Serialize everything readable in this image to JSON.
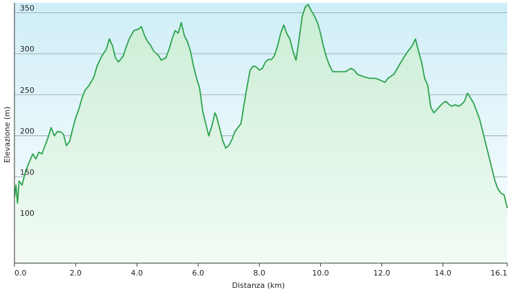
{
  "chart_data": {
    "type": "area",
    "title": "",
    "xlabel": "Distanza  (km)",
    "ylabel": "Elevazione (m)",
    "xlim": [
      0,
      16.1
    ],
    "ylim": [
      45,
      362
    ],
    "grid": true,
    "x_ticks": [
      0,
      2,
      4,
      6,
      8,
      10,
      12,
      14,
      16.1
    ],
    "x_tick_labels": [
      "0.0",
      "2.0",
      "4.0",
      "6.0",
      "8.0",
      "10.0",
      "12.0",
      "14.0",
      "16.1"
    ],
    "y_ticks": [
      100,
      150,
      200,
      250,
      300,
      350
    ],
    "y_tick_labels": [
      "100",
      "150",
      "200",
      "250",
      "300",
      "350"
    ],
    "colors": {
      "line": "#2ba24c",
      "fill_top": "#c9edd4",
      "fill_bottom": "#f2fbf5",
      "bg_top": "#cfeef7",
      "bg_bottom": "#ffffff",
      "grid": "#8a9ba3",
      "axis": "#333333"
    },
    "series": [
      {
        "values": [
          [
            0.0,
            125
          ],
          [
            0.05,
            140
          ],
          [
            0.1,
            118
          ],
          [
            0.15,
            145
          ],
          [
            0.25,
            140
          ],
          [
            0.35,
            155
          ],
          [
            0.45,
            165
          ],
          [
            0.6,
            178
          ],
          [
            0.7,
            172
          ],
          [
            0.8,
            180
          ],
          [
            0.9,
            178
          ],
          [
            1.0,
            188
          ],
          [
            1.1,
            198
          ],
          [
            1.2,
            210
          ],
          [
            1.3,
            200
          ],
          [
            1.4,
            205
          ],
          [
            1.5,
            205
          ],
          [
            1.6,
            202
          ],
          [
            1.7,
            188
          ],
          [
            1.8,
            193
          ],
          [
            1.9,
            208
          ],
          [
            2.0,
            222
          ],
          [
            2.1,
            232
          ],
          [
            2.2,
            245
          ],
          [
            2.3,
            255
          ],
          [
            2.45,
            262
          ],
          [
            2.6,
            272
          ],
          [
            2.7,
            285
          ],
          [
            2.85,
            297
          ],
          [
            3.0,
            305
          ],
          [
            3.1,
            318
          ],
          [
            3.2,
            310
          ],
          [
            3.3,
            295
          ],
          [
            3.4,
            290
          ],
          [
            3.55,
            297
          ],
          [
            3.65,
            308
          ],
          [
            3.75,
            318
          ],
          [
            3.9,
            328
          ],
          [
            4.05,
            330
          ],
          [
            4.15,
            333
          ],
          [
            4.25,
            322
          ],
          [
            4.35,
            315
          ],
          [
            4.45,
            310
          ],
          [
            4.55,
            303
          ],
          [
            4.7,
            298
          ],
          [
            4.8,
            292
          ],
          [
            4.95,
            295
          ],
          [
            5.05,
            305
          ],
          [
            5.15,
            318
          ],
          [
            5.25,
            328
          ],
          [
            5.35,
            325
          ],
          [
            5.45,
            338
          ],
          [
            5.55,
            322
          ],
          [
            5.65,
            315
          ],
          [
            5.75,
            303
          ],
          [
            5.85,
            285
          ],
          [
            5.95,
            270
          ],
          [
            6.05,
            258
          ],
          [
            6.15,
            230
          ],
          [
            6.25,
            215
          ],
          [
            6.35,
            200
          ],
          [
            6.45,
            212
          ],
          [
            6.55,
            228
          ],
          [
            6.6,
            224
          ],
          [
            6.7,
            210
          ],
          [
            6.8,
            195
          ],
          [
            6.9,
            185
          ],
          [
            7.0,
            188
          ],
          [
            7.1,
            195
          ],
          [
            7.2,
            205
          ],
          [
            7.3,
            210
          ],
          [
            7.4,
            215
          ],
          [
            7.5,
            238
          ],
          [
            7.6,
            260
          ],
          [
            7.7,
            280
          ],
          [
            7.8,
            285
          ],
          [
            7.9,
            284
          ],
          [
            8.0,
            280
          ],
          [
            8.1,
            282
          ],
          [
            8.2,
            290
          ],
          [
            8.3,
            293
          ],
          [
            8.4,
            293
          ],
          [
            8.5,
            298
          ],
          [
            8.6,
            310
          ],
          [
            8.7,
            325
          ],
          [
            8.8,
            335
          ],
          [
            8.9,
            324
          ],
          [
            9.0,
            318
          ],
          [
            9.1,
            303
          ],
          [
            9.2,
            292
          ],
          [
            9.3,
            318
          ],
          [
            9.4,
            345
          ],
          [
            9.5,
            357
          ],
          [
            9.6,
            360
          ],
          [
            9.7,
            352
          ],
          [
            9.8,
            346
          ],
          [
            9.9,
            338
          ],
          [
            10.0,
            325
          ],
          [
            10.1,
            308
          ],
          [
            10.2,
            295
          ],
          [
            10.3,
            285
          ],
          [
            10.4,
            278
          ],
          [
            10.6,
            278
          ],
          [
            10.8,
            278
          ],
          [
            11.0,
            282
          ],
          [
            11.1,
            280
          ],
          [
            11.2,
            275
          ],
          [
            11.4,
            272
          ],
          [
            11.6,
            270
          ],
          [
            11.8,
            270
          ],
          [
            12.0,
            267
          ],
          [
            12.1,
            265
          ],
          [
            12.2,
            270
          ],
          [
            12.4,
            275
          ],
          [
            12.6,
            288
          ],
          [
            12.8,
            300
          ],
          [
            13.0,
            310
          ],
          [
            13.1,
            318
          ],
          [
            13.2,
            303
          ],
          [
            13.3,
            290
          ],
          [
            13.4,
            270
          ],
          [
            13.5,
            262
          ],
          [
            13.6,
            235
          ],
          [
            13.7,
            228
          ],
          [
            13.8,
            232
          ],
          [
            13.9,
            236
          ],
          [
            14.0,
            240
          ],
          [
            14.1,
            242
          ],
          [
            14.2,
            238
          ],
          [
            14.3,
            236
          ],
          [
            14.4,
            238
          ],
          [
            14.5,
            236
          ],
          [
            14.6,
            238
          ],
          [
            14.7,
            242
          ],
          [
            14.8,
            252
          ],
          [
            14.9,
            246
          ],
          [
            15.0,
            240
          ],
          [
            15.1,
            230
          ],
          [
            15.2,
            220
          ],
          [
            15.3,
            205
          ],
          [
            15.4,
            190
          ],
          [
            15.5,
            175
          ],
          [
            15.6,
            160
          ],
          [
            15.7,
            145
          ],
          [
            15.8,
            135
          ],
          [
            15.9,
            130
          ],
          [
            16.0,
            128
          ],
          [
            16.1,
            112
          ]
        ]
      }
    ]
  }
}
